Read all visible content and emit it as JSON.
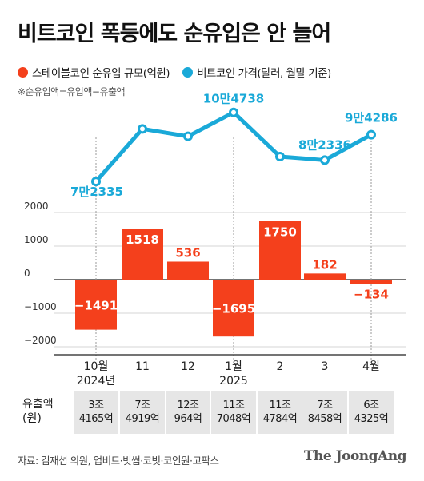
{
  "title": "비트코인 폭등에도 순유입은 안 늘어",
  "legend": {
    "stablecoin": "스테이블코인 순유입 규모(억원)",
    "bitcoin": "비트코인 가격(달러, 월말 기준)"
  },
  "note": "※순유입액=유입액−유출액",
  "colors": {
    "bar": "#f4401c",
    "line": "#1aa9d8",
    "bar_label_outside": "#f4401c",
    "line_label": "#1aa9d8"
  },
  "chart_data": [
    {
      "type": "bar",
      "categories": [
        "10월",
        "11",
        "12",
        "1월",
        "2",
        "3",
        "4월"
      ],
      "year_labels": [
        "2024년",
        "",
        "",
        "2025",
        "",
        "",
        ""
      ],
      "values": [
        -1491,
        1518,
        536,
        -1695,
        1750,
        182,
        -134
      ],
      "value_labels": [
        "−1491",
        "1518",
        "536",
        "−1695",
        "1750",
        "182",
        "−134"
      ],
      "yticks": [
        2000,
        1000,
        0,
        -1000,
        -2000
      ],
      "ytick_labels": [
        "2000",
        "1000",
        "0",
        "−1000",
        "−2000"
      ],
      "ylim": [
        -2000,
        2000
      ],
      "grid": true
    },
    {
      "type": "line",
      "categories": [
        "10월",
        "11",
        "12",
        "1월",
        "2",
        "3",
        "4월"
      ],
      "values": [
        72335,
        97000,
        93500,
        104738,
        84000,
        82336,
        94286
      ],
      "point_labels": [
        "7만2335",
        "",
        "",
        "10만4738",
        "",
        "8만2336",
        "9만4286"
      ]
    }
  ],
  "outflow": {
    "row_label": "유출액\n(원)",
    "cells": [
      [
        "3조",
        "4165억"
      ],
      [
        "7조",
        "4919억"
      ],
      [
        "12조",
        "964억"
      ],
      [
        "11조",
        "7048억"
      ],
      [
        "11조",
        "4784억"
      ],
      [
        "7조",
        "8458억"
      ],
      [
        "6조",
        "4325억"
      ]
    ]
  },
  "source": "자료: 김재섭 의원, 업비트·빗썸·코빗·코인원·고팍스",
  "brand": "The JoongAng"
}
